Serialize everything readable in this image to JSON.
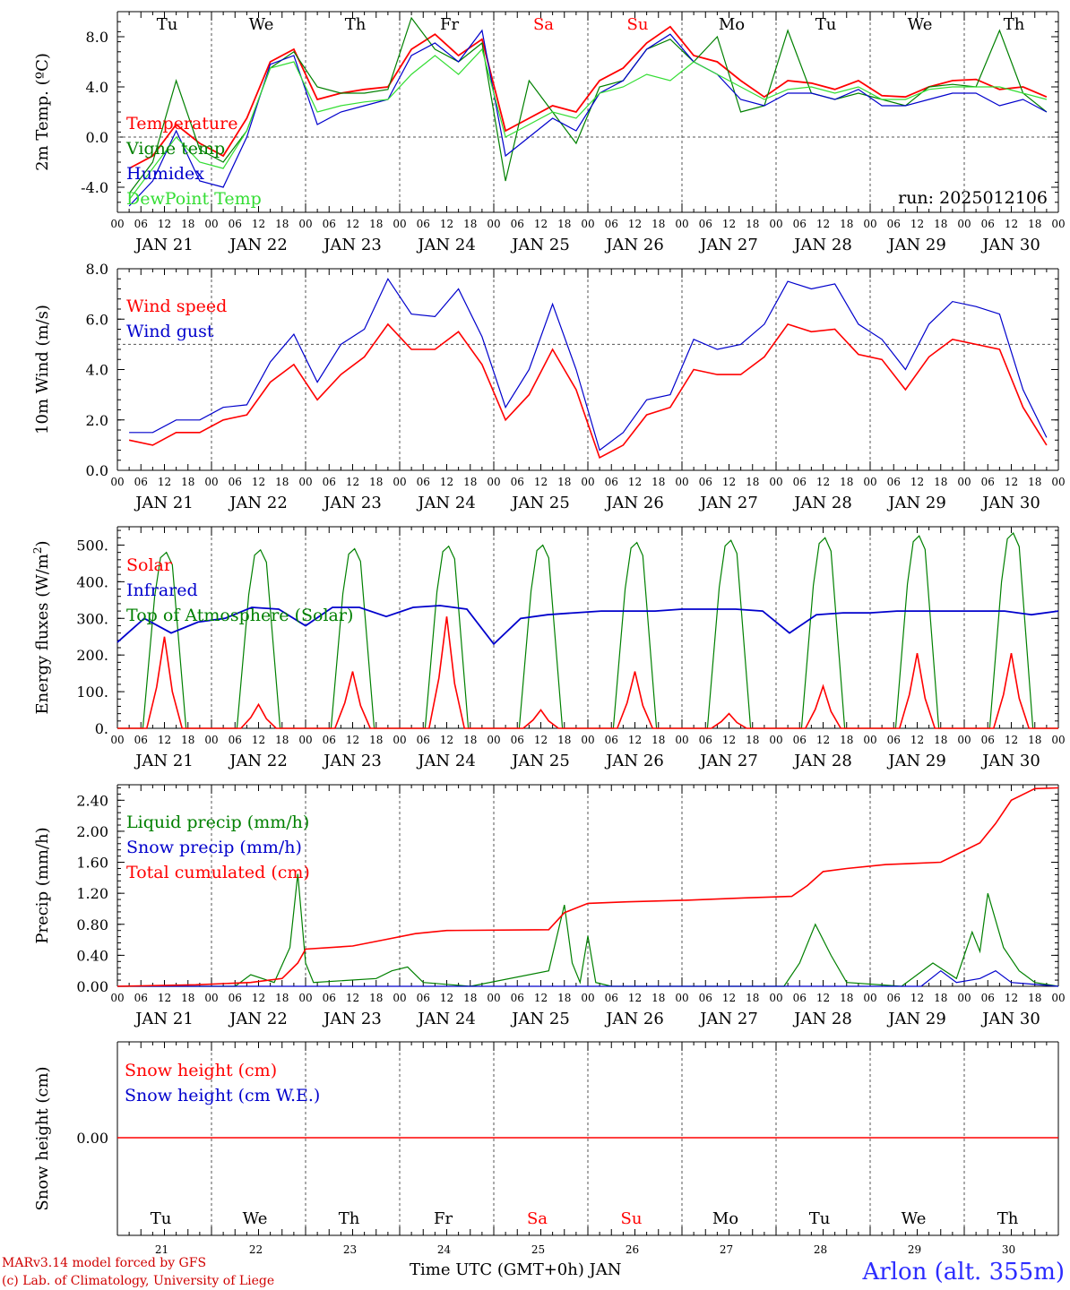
{
  "chart_data": [
    {
      "type": "line",
      "ylabel": "2m Temp. (ºC)",
      "ylim": [
        -6,
        10
      ],
      "yticks": [
        "-4.0",
        "0.0",
        "4.0",
        "8.0"
      ],
      "ytick_values": [
        -4,
        0,
        4,
        8
      ],
      "reference_line": 0,
      "run_label": "run: 2025012106",
      "x": [
        0,
        6,
        12,
        18,
        24,
        30,
        36,
        42,
        48,
        54,
        60,
        66,
        72,
        78,
        84,
        90,
        96,
        102,
        108,
        114,
        120,
        126,
        132,
        138,
        144,
        150,
        156,
        162,
        168,
        174,
        180,
        186,
        192,
        198,
        204,
        210,
        216,
        222,
        228,
        234
      ],
      "series": [
        {
          "name": "Temperature",
          "color": "#ff0000",
          "values": [
            -2.5,
            -1.5,
            1.0,
            -0.5,
            -1.5,
            1.5,
            6.0,
            7.0,
            3.0,
            3.5,
            3.8,
            4.0,
            7.0,
            8.2,
            6.5,
            7.8,
            0.5,
            1.5,
            2.5,
            2.0,
            4.5,
            5.5,
            7.5,
            8.8,
            6.5,
            6.0,
            4.5,
            3.2,
            4.5,
            4.3,
            3.8,
            4.5,
            3.3,
            3.2,
            4.0,
            4.5,
            4.6,
            3.8,
            4.0,
            3.2
          ]
        },
        {
          "name": "Vigne temp",
          "color": "#008000",
          "values": [
            -4.5,
            -2.0,
            4.5,
            -1.0,
            -2.0,
            0.5,
            5.5,
            6.8,
            4.0,
            3.5,
            3.5,
            3.8,
            9.5,
            7.0,
            6.0,
            7.5,
            -3.5,
            4.5,
            2.0,
            -0.5,
            4.0,
            4.5,
            7.0,
            7.8,
            6.0,
            8.0,
            2.0,
            2.5,
            8.5,
            3.5,
            3.0,
            3.5,
            3.0,
            2.5,
            4.0,
            4.2,
            4.0,
            8.5,
            3.5,
            2.0
          ]
        },
        {
          "name": "Humidex",
          "color": "#0000cc",
          "values": [
            -5.5,
            -3.5,
            0.5,
            -3.5,
            -4.0,
            0.0,
            5.8,
            6.5,
            1.0,
            2.0,
            2.5,
            3.0,
            6.5,
            7.5,
            6.0,
            8.5,
            -1.5,
            0.0,
            1.5,
            0.5,
            3.5,
            4.5,
            7.0,
            8.2,
            6.0,
            5.0,
            3.0,
            2.5,
            3.5,
            3.5,
            3.0,
            3.8,
            2.5,
            2.5,
            3.0,
            3.5,
            3.5,
            2.5,
            3.0,
            2.0
          ]
        },
        {
          "name": "DewPoint Temp",
          "color": "#33dd33",
          "values": [
            -5.0,
            -2.5,
            0.0,
            -2.0,
            -2.5,
            0.5,
            5.5,
            6.0,
            2.0,
            2.5,
            2.8,
            3.0,
            5.0,
            6.5,
            5.0,
            7.0,
            0.0,
            1.0,
            2.0,
            1.5,
            3.5,
            4.0,
            5.0,
            4.5,
            6.0,
            5.0,
            4.0,
            3.0,
            3.8,
            4.0,
            3.5,
            4.0,
            3.0,
            3.0,
            3.8,
            4.0,
            4.0,
            4.0,
            3.5,
            3.0
          ]
        }
      ]
    },
    {
      "type": "line",
      "ylabel": "10m Wind (m/s)",
      "ylim": [
        0,
        8
      ],
      "yticks": [
        "0.0",
        "2.0",
        "4.0",
        "6.0",
        "8.0"
      ],
      "ytick_values": [
        0,
        2,
        4,
        6,
        8
      ],
      "reference_line": 5,
      "x": [
        0,
        6,
        12,
        18,
        24,
        30,
        36,
        42,
        48,
        54,
        60,
        66,
        72,
        78,
        84,
        90,
        96,
        102,
        108,
        114,
        120,
        126,
        132,
        138,
        144,
        150,
        156,
        162,
        168,
        174,
        180,
        186,
        192,
        198,
        204,
        210,
        216,
        222,
        228,
        234
      ],
      "series": [
        {
          "name": "Wind speed",
          "color": "#ff0000",
          "values": [
            1.2,
            1.0,
            1.5,
            1.5,
            2.0,
            2.2,
            3.5,
            4.2,
            2.8,
            3.8,
            4.5,
            5.8,
            4.8,
            4.8,
            5.5,
            4.2,
            2.0,
            3.0,
            4.8,
            3.2,
            0.5,
            1.0,
            2.2,
            2.5,
            4.0,
            3.8,
            3.8,
            4.5,
            5.8,
            5.5,
            5.6,
            4.6,
            4.4,
            3.2,
            4.5,
            5.2,
            5.0,
            4.8,
            2.5,
            1.0
          ]
        },
        {
          "name": "Wind gust",
          "color": "#0000cc",
          "values": [
            1.5,
            1.5,
            2.0,
            2.0,
            2.5,
            2.6,
            4.3,
            5.4,
            3.5,
            5.0,
            5.6,
            7.6,
            6.2,
            6.1,
            7.2,
            5.3,
            2.5,
            4.0,
            6.6,
            4.0,
            0.8,
            1.5,
            2.8,
            3.0,
            5.2,
            4.8,
            5.0,
            5.8,
            7.5,
            7.2,
            7.4,
            5.8,
            5.2,
            4.0,
            5.8,
            6.7,
            6.5,
            6.2,
            3.2,
            1.3
          ]
        }
      ]
    },
    {
      "type": "line",
      "ylabel": "Energy fluxes (W/m²)",
      "ylim": [
        0,
        550
      ],
      "yticks": [
        "0.",
        "100.",
        "200.",
        "300.",
        "400.",
        "500."
      ],
      "ytick_values": [
        0,
        100,
        200,
        300,
        400,
        500
      ],
      "peaks": {
        "toa": [
          480,
          487,
          490,
          497,
          500,
          507,
          513,
          520,
          525,
          533
        ],
        "solar": [
          250,
          65,
          155,
          305,
          50,
          155,
          40,
          115,
          205,
          205
        ]
      },
      "series": [
        {
          "name": "Solar",
          "color": "#ff0000"
        },
        {
          "name": "Infrared",
          "color": "#0000cc",
          "values": [
            235,
            300,
            260,
            290,
            300,
            330,
            325,
            280,
            330,
            330,
            305,
            330,
            335,
            325,
            230,
            300,
            310,
            315,
            320,
            320,
            320,
            325,
            325,
            325,
            320,
            260,
            310,
            315,
            315,
            320,
            320,
            320,
            320,
            320,
            310,
            320
          ]
        },
        {
          "name": "Top of Atmosphere (Solar)",
          "color": "#008000"
        }
      ]
    },
    {
      "type": "line",
      "ylabel": "Precip (mm/h)",
      "ylim": [
        0,
        2.6
      ],
      "yticks": [
        "0.00",
        "0.40",
        "0.80",
        "1.20",
        "1.60",
        "2.00",
        "2.40"
      ],
      "ytick_values": [
        0,
        0.4,
        0.8,
        1.2,
        1.6,
        2.0,
        2.4
      ],
      "series": [
        {
          "name": "Liquid precip (mm/h)",
          "color": "#008000",
          "points": [
            [
              0,
              0
            ],
            [
              30,
              0
            ],
            [
              34,
              0.15
            ],
            [
              40,
              0.05
            ],
            [
              44,
              0.5
            ],
            [
              46,
              1.45
            ],
            [
              48,
              0.3
            ],
            [
              50,
              0.05
            ],
            [
              66,
              0.1
            ],
            [
              70,
              0.2
            ],
            [
              74,
              0.25
            ],
            [
              78,
              0.05
            ],
            [
              90,
              0.0
            ],
            [
              110,
              0.2
            ],
            [
              114,
              1.05
            ],
            [
              116,
              0.3
            ],
            [
              118,
              0.05
            ],
            [
              120,
              0.65
            ],
            [
              122,
              0.05
            ],
            [
              126,
              0.0
            ],
            [
              170,
              0.0
            ],
            [
              174,
              0.3
            ],
            [
              178,
              0.8
            ],
            [
              182,
              0.4
            ],
            [
              186,
              0.05
            ],
            [
              200,
              0.0
            ],
            [
              208,
              0.3
            ],
            [
              214,
              0.1
            ],
            [
              218,
              0.7
            ],
            [
              220,
              0.45
            ],
            [
              222,
              1.2
            ],
            [
              226,
              0.5
            ],
            [
              230,
              0.2
            ],
            [
              234,
              0.05
            ],
            [
              240,
              0.0
            ]
          ]
        },
        {
          "name": "Snow precip (mm/h)",
          "color": "#0000cc",
          "points": [
            [
              0,
              0
            ],
            [
              205,
              0
            ],
            [
              210,
              0.2
            ],
            [
              214,
              0.05
            ],
            [
              220,
              0.1
            ],
            [
              224,
              0.2
            ],
            [
              228,
              0.05
            ],
            [
              240,
              0.0
            ]
          ]
        },
        {
          "name": "Total cumulated (cm)",
          "color": "#ff0000",
          "points": [
            [
              0,
              0.0
            ],
            [
              20,
              0.02
            ],
            [
              34,
              0.05
            ],
            [
              42,
              0.1
            ],
            [
              46,
              0.3
            ],
            [
              48,
              0.48
            ],
            [
              60,
              0.52
            ],
            [
              68,
              0.6
            ],
            [
              76,
              0.68
            ],
            [
              84,
              0.72
            ],
            [
              110,
              0.73
            ],
            [
              114,
              0.95
            ],
            [
              120,
              1.07
            ],
            [
              130,
              1.09
            ],
            [
              145,
              1.11
            ],
            [
              160,
              1.14
            ],
            [
              172,
              1.16
            ],
            [
              176,
              1.3
            ],
            [
              180,
              1.48
            ],
            [
              186,
              1.52
            ],
            [
              196,
              1.57
            ],
            [
              210,
              1.6
            ],
            [
              214,
              1.7
            ],
            [
              220,
              1.85
            ],
            [
              224,
              2.1
            ],
            [
              228,
              2.4
            ],
            [
              234,
              2.55
            ],
            [
              240,
              2.56
            ]
          ]
        }
      ]
    },
    {
      "type": "line",
      "ylabel": "Snow height (cm)",
      "yticks": [
        "0.00"
      ],
      "series": [
        {
          "name": "Snow height (cm)",
          "color": "#ff0000",
          "values": [
            0
          ]
        },
        {
          "name": "Snow height (cm W.E.)",
          "color": "#0000cc",
          "values": [
            0
          ]
        }
      ]
    }
  ],
  "hour_ticks": [
    "00",
    "06",
    "12",
    "18"
  ],
  "dates": [
    "JAN 21",
    "JAN 22",
    "JAN 23",
    "JAN 24",
    "JAN 25",
    "JAN 26",
    "JAN 27",
    "JAN 28",
    "JAN 29",
    "JAN 30"
  ],
  "weekdays": [
    {
      "label": "Tu",
      "color": "#000000"
    },
    {
      "label": "We",
      "color": "#000000"
    },
    {
      "label": "Th",
      "color": "#000000"
    },
    {
      "label": "Fr",
      "color": "#000000"
    },
    {
      "label": "Sa",
      "color": "#ff0000"
    },
    {
      "label": "Su",
      "color": "#ff0000"
    },
    {
      "label": "Mo",
      "color": "#000000"
    },
    {
      "label": "Tu",
      "color": "#000000"
    },
    {
      "label": "We",
      "color": "#000000"
    },
    {
      "label": "Th",
      "color": "#000000"
    }
  ],
  "day_numbers": [
    "21",
    "22",
    "23",
    "24",
    "25",
    "26",
    "27",
    "28",
    "29",
    "30"
  ],
  "xlabel": "Time UTC (GMT+0h) JAN",
  "footer": {
    "model": "MARv3.14 model forced by GFS",
    "copyright": "(c) Lab. of Climatology, University of Liege",
    "location": "Arlon (alt. 355m)"
  }
}
